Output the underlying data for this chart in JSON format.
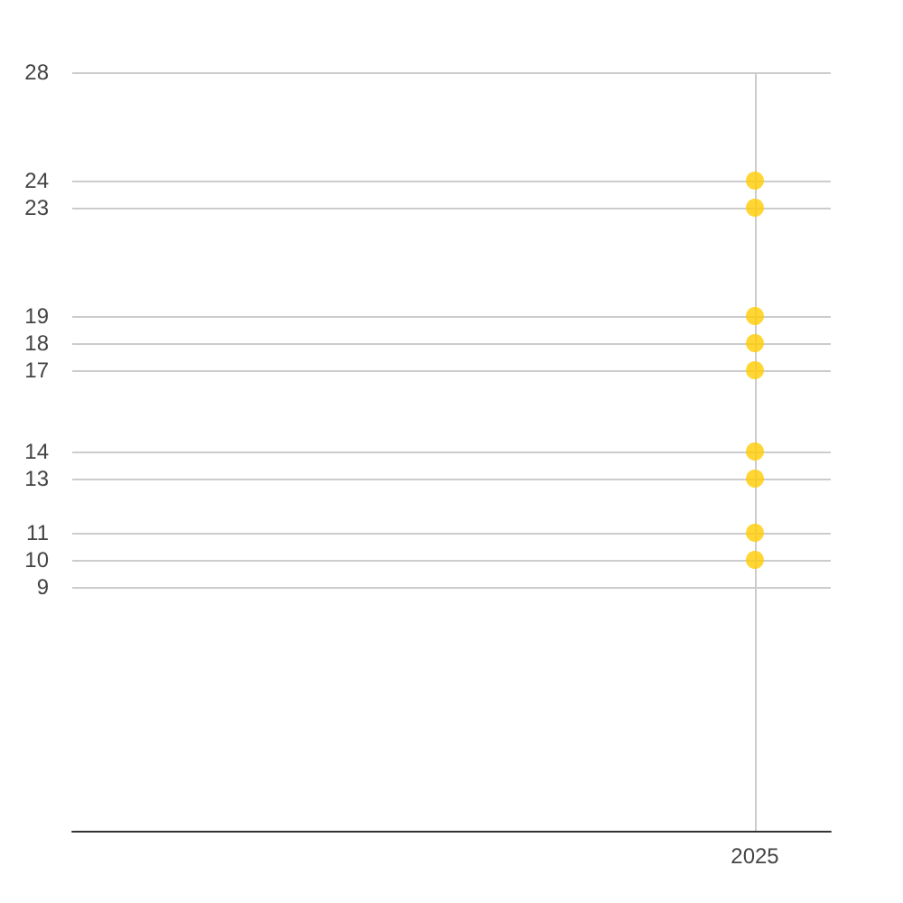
{
  "chart_data": {
    "type": "scatter",
    "categories": [
      null,
      null,
      null,
      null,
      null,
      null,
      null,
      null,
      null,
      "2025",
      null
    ],
    "series": [
      {
        "color": "#ffcc00",
        "values": [
          null,
          null,
          null,
          null,
          null,
          null,
          null,
          null,
          null,
          24,
          null
        ]
      },
      {
        "color": "#ffcc00",
        "values": [
          null,
          null,
          null,
          null,
          null,
          null,
          null,
          null,
          null,
          23,
          null
        ]
      },
      {
        "color": "#ffcc00",
        "values": [
          null,
          null,
          null,
          null,
          null,
          null,
          null,
          null,
          null,
          19,
          null
        ]
      },
      {
        "color": "#ffcc00",
        "values": [
          null,
          null,
          null,
          null,
          null,
          null,
          null,
          null,
          null,
          18,
          null
        ]
      },
      {
        "color": "#ffcc00",
        "values": [
          null,
          null,
          null,
          null,
          null,
          null,
          null,
          null,
          null,
          17,
          null
        ]
      },
      {
        "color": "#ffcc00",
        "values": [
          null,
          null,
          null,
          null,
          null,
          null,
          null,
          null,
          null,
          14,
          null
        ]
      },
      {
        "color": "#ffcc00",
        "values": [
          null,
          null,
          null,
          null,
          null,
          null,
          null,
          null,
          null,
          13,
          null
        ]
      },
      {
        "color": "#ffcc00",
        "values": [
          null,
          null,
          null,
          null,
          null,
          null,
          null,
          null,
          null,
          11,
          null
        ]
      },
      {
        "color": "#ffcc00",
        "values": [
          null,
          null,
          null,
          null,
          null,
          null,
          null,
          null,
          null,
          10,
          null
        ]
      }
    ],
    "marker": "circle",
    "ylim": [
      0,
      28
    ],
    "yticks": [
      9,
      10,
      11,
      13,
      14,
      17,
      18,
      19,
      23,
      24,
      28
    ],
    "grid": true
  }
}
